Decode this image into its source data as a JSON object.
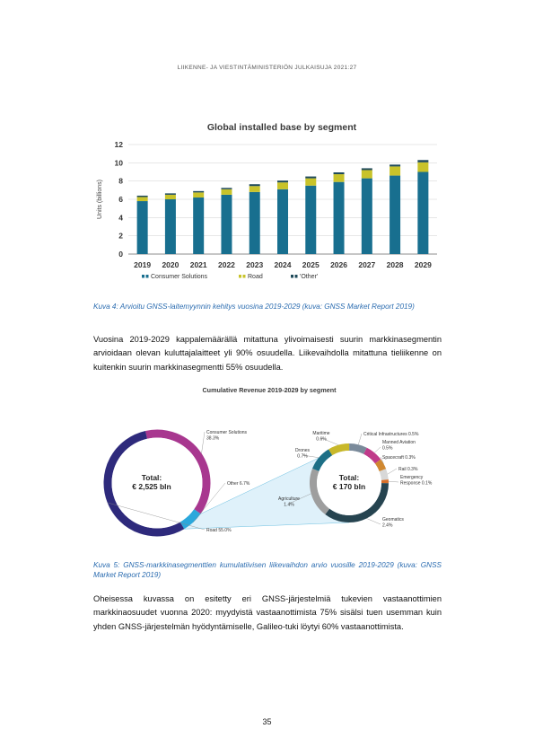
{
  "header": "LIIKENNE- JA VIESTINTÄMINISTERIÖN JULKAISUJA 2021:27",
  "colors": {
    "consumer": "#186f8f",
    "road": "#c8c32a",
    "other": "#1f4a5a",
    "caption": "#2b6cb0"
  },
  "chart_data": [
    {
      "type": "bar",
      "title": "Global installed base by segment",
      "ylabel": "Units (billions)",
      "xlabel": "",
      "ylim": [
        0,
        12
      ],
      "yticks": [
        0,
        2,
        4,
        6,
        8,
        10,
        12
      ],
      "grid": true,
      "stacked": true,
      "legend_position": "bottom",
      "categories": [
        "2019",
        "2020",
        "2021",
        "2022",
        "2023",
        "2024",
        "2025",
        "2026",
        "2027",
        "2028",
        "2029"
      ],
      "series": [
        {
          "name": "Consumer Solutions",
          "values": [
            5.8,
            6.0,
            6.2,
            6.5,
            6.8,
            7.1,
            7.5,
            7.9,
            8.3,
            8.6,
            9.0
          ]
        },
        {
          "name": "Road",
          "values": [
            0.45,
            0.5,
            0.55,
            0.6,
            0.65,
            0.75,
            0.8,
            0.85,
            0.9,
            1.0,
            1.05
          ]
        },
        {
          "name": "'Other'",
          "values": [
            0.15,
            0.15,
            0.15,
            0.15,
            0.2,
            0.2,
            0.2,
            0.2,
            0.2,
            0.2,
            0.25
          ]
        }
      ]
    },
    {
      "type": "pie",
      "title": "Cumulative Revenue 2019-2029 by segment",
      "charts": [
        {
          "total_label": "Total:",
          "total_value": "€ 2,525 bln",
          "slices": [
            {
              "label": "Consumer Solutions",
              "pct_label": "38.3%",
              "value": 38.3,
              "color": "#a8378f"
            },
            {
              "label": "Road",
              "pct_label": "55.0%",
              "value": 55.0,
              "color": "#2e2a7c"
            },
            {
              "label": "Other",
              "pct_label": "6.7%",
              "value": 6.7,
              "color": "#2ba8dc"
            }
          ]
        },
        {
          "total_label": "Total:",
          "total_value": "€ 170 bln",
          "slices": [
            {
              "label": "Maritime",
              "pct_label": "0.6%",
              "value": 0.6,
              "color": "#c8b82a"
            },
            {
              "label": "Critical Infrastructures",
              "pct_label": "0.5%",
              "value": 0.5,
              "color": "#7a8a9a"
            },
            {
              "label": "Manned Aviation",
              "pct_label": "0.5%",
              "value": 0.5,
              "color": "#c03a8a"
            },
            {
              "label": "Spacecraft",
              "pct_label": "0.3%",
              "value": 0.3,
              "color": "#d08830"
            },
            {
              "label": "Rail",
              "pct_label": "0.3%",
              "value": 0.3,
              "color": "#d8d8d8"
            },
            {
              "label": "Emergency Response",
              "pct_label": "0.1%",
              "value": 0.1,
              "color": "#d8702a"
            },
            {
              "label": "Geomatics",
              "pct_label": "2.4%",
              "value": 2.4,
              "color": "#264450"
            },
            {
              "label": "Agriculture",
              "pct_label": "1.4%",
              "value": 1.4,
              "color": "#9e9e9e"
            },
            {
              "label": "Drones",
              "pct_label": "0.7%",
              "value": 0.7,
              "color": "#1d6f86"
            }
          ]
        }
      ]
    }
  ],
  "captions": {
    "fig4": "Kuva 4: Arvioitu GNSS-laitemyynnin kehitys vuosina 2019-2029 (kuva: GNSS Market Report 2019)",
    "fig5": "Kuva 5: GNSS-markkinasegmenttien kumulatiivisen liikevaihdon arvio vuosille 2019-2029 (kuva: GNSS Market Report 2019)"
  },
  "paragraphs": {
    "p1": "Vuosina 2019-2029 kappalemäärällä mitattuna ylivoimaisesti suurin markkinasegmentin arvioidaan olevan kuluttajalaitteet yli 90% osuudella. Liikevaihdolla mitattuna tieliikenne on kuitenkin suurin markkinasegmentti 55% osuudella.",
    "p2": "Oheisessa kuvassa on esitetty eri GNSS-järjestelmiä tukevien vastaanottimien markkinaosuudet vuonna 2020: myydyistä vastaanottimista 75% sisälsi tuen usemman kuin yhden GNSS-järjestelmän hyödyntämiselle, Galileo-tuki löytyi 60% vastaanottimista."
  },
  "page_number": "35"
}
